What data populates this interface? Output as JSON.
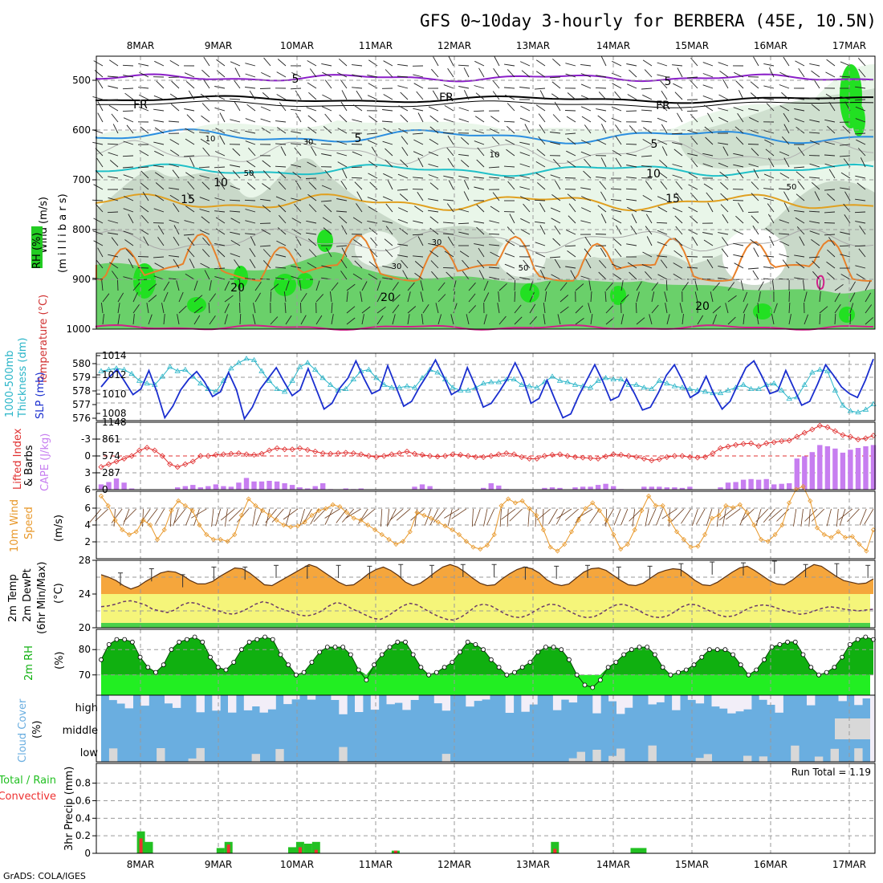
{
  "title": "GFS 0~10day 3-hourly for BERBERA (45E, 10.5N)",
  "credit": "GrADS: COLA/IGES",
  "run_total": "Run Total = 1.19",
  "dates": [
    "8MAR",
    "9MAR",
    "10MAR",
    "11MAR",
    "12MAR",
    "13MAR",
    "14MAR",
    "15MAR",
    "16MAR",
    "17MAR"
  ],
  "panels": {
    "upper": {
      "labels": [
        "Wind (m/s)",
        "Temperature (°C)",
        "RH (%)",
        "(m i l l i b a r s)"
      ],
      "ticks": [
        "500",
        "600",
        "700",
        "800",
        "900",
        "1000"
      ],
      "contour_labels": [
        "5",
        "5",
        "FR",
        "FR",
        "FR",
        "5",
        "5",
        "10",
        "10",
        "15",
        "15",
        "20",
        "20",
        "20",
        "10",
        "30",
        "30",
        "50",
        "50",
        "30",
        "10",
        "50"
      ]
    },
    "slp": {
      "labels": [
        "1000-500mb",
        "Thickness (dm)",
        "SLP (mb)"
      ],
      "left_ticks": [
        "580",
        "579",
        "578",
        "577",
        "576"
      ],
      "right_ticks": [
        "1014",
        "1012",
        "1010",
        "1008"
      ]
    },
    "cape": {
      "labels": [
        "Lifted Index",
        "CAPE (J/kg)"
      ],
      "left_ticks": [
        "-3",
        "0",
        "3",
        "6"
      ],
      "right_ticks": [
        "1148",
        "861",
        "574",
        "287",
        "0"
      ]
    },
    "wind10": {
      "labels": [
        "10m Wind",
        "Speed",
        "& Barbs",
        "(m/s)"
      ],
      "ticks": [
        "6",
        "4",
        "2"
      ]
    },
    "temp2m": {
      "labels": [
        "2m Temp",
        "2m DewPt",
        "(6hr Min/Max)",
        "(°C)"
      ],
      "ticks": [
        "28",
        "24",
        "20"
      ]
    },
    "rh2m": {
      "labels": [
        "2m RH",
        "(%)"
      ],
      "ticks": [
        "80",
        "70"
      ]
    },
    "cloud": {
      "labels": [
        "Cloud Cover",
        "(%)"
      ],
      "levels": [
        "high",
        "middle",
        "low"
      ]
    },
    "precip": {
      "labels": [
        "Total / Rain",
        "Convective",
        "3hr Precip (mm)"
      ],
      "ticks": [
        "0.8",
        "0.6",
        "0.4",
        "0.2",
        "0"
      ]
    }
  },
  "colors": {
    "slp": "#1a2ecf",
    "thickness": "#2ab5c8",
    "lifted_index": "#e03030",
    "cape": "#c77ef0",
    "wind_speed": "#e8982a",
    "temp_fill": "#f5a63c",
    "dew_fill": "#f5f57a",
    "rh_fill": "#10b010",
    "rh_light": "#22ee22",
    "cloud": "#6aaee0",
    "precip_total": "#22c022",
    "precip_conv": "#ee3030"
  },
  "chart_data": {
    "type": "meteogram",
    "title": "GFS 0~10day 3-hourly for BERBERA (45E, 10.5N)",
    "time_step_hours": 3,
    "slp_mb": {
      "ylim": [
        1007,
        1014
      ],
      "values": [
        1010.5,
        1011.5,
        1012.3,
        1011,
        1009.7,
        1010.3,
        1012.2,
        1010,
        1007.3,
        1008.5,
        1010.2,
        1011.3,
        1012.1,
        1011,
        1009.5,
        1010,
        1012,
        1010.2,
        1007.2,
        1008.4,
        1010.3,
        1011.4,
        1012.5,
        1011,
        1009.6,
        1010.2,
        1012.4,
        1010.3,
        1008.2,
        1008.8,
        1010.4,
        1011.4,
        1013.2,
        1011.4,
        1009.8,
        1010.2,
        1012.7,
        1010.6,
        1008.5,
        1009,
        1010.5,
        1011.8,
        1013.3,
        1011.6,
        1009.7,
        1010.2,
        1012.5,
        1010.6,
        1008.4,
        1008.8,
        1010,
        1011.3,
        1013,
        1011.3,
        1008.8,
        1009.3,
        1011.2,
        1009.2,
        1007.3,
        1007.7,
        1009.6,
        1011.2,
        1012.8,
        1011.1,
        1009.1,
        1009.5,
        1011.3,
        1009.8,
        1008.1,
        1008.4,
        1009.9,
        1011.7,
        1012.8,
        1011.2,
        1009.4,
        1009.9,
        1011.6,
        1009.7,
        1008.2,
        1009,
        1010.8,
        1012.5,
        1013.2,
        1011.6,
        1009.8,
        1010.1,
        1012.2,
        1010.4,
        1008.6,
        1009,
        1010.8,
        1012.8,
        1011.7,
        1010.5,
        1009.8,
        1009.4,
        1011.2,
        1013.4
      ]
    },
    "thickness_dm": {
      "ylim": [
        575.9,
        580.8
      ],
      "values": [
        579.5,
        579.6,
        579.7,
        579.6,
        579.3,
        578.8,
        578.6,
        578.5,
        579.1,
        579.8,
        579.5,
        579.6,
        579.1,
        578.6,
        578.2,
        578,
        578.8,
        579.7,
        580.1,
        580.4,
        580.3,
        579.5,
        578.8,
        578.2,
        578,
        578.8,
        579.8,
        580.1,
        579.6,
        579,
        578.5,
        578.1,
        578.2,
        578.9,
        579.5,
        579.6,
        579,
        578.5,
        578.3,
        578.3,
        578.4,
        578.3,
        579,
        579.6,
        579.4,
        578.9,
        578.3,
        578.1,
        578.1,
        578.3,
        578.6,
        578.7,
        578.7,
        578.9,
        578.9,
        578.5,
        578.4,
        578.3,
        578.7,
        579.1,
        578.8,
        578.7,
        578.5,
        578.4,
        578.3,
        578.8,
        579,
        578.9,
        578.9,
        578.5,
        578.5,
        578.3,
        578.2,
        578.8,
        578.6,
        578.4,
        578.3,
        578.2,
        578.1,
        578,
        577.9,
        577.9,
        578.1,
        578.3,
        578.5,
        578.2,
        578.2,
        578.5,
        578.6,
        578.1,
        577.5,
        577.6,
        578.5,
        579.4,
        579.6,
        579.5,
        578.1,
        577,
        576.6,
        576.5,
        576.7,
        577.1
      ]
    },
    "lifted_index": {
      "ylim": [
        6,
        -6
      ],
      "values": [
        2,
        1.5,
        1,
        0.5,
        0,
        -1,
        -1.5,
        -1,
        0,
        1.5,
        2,
        1.5,
        1,
        0,
        0,
        -0.2,
        -0.3,
        -0.4,
        -0.5,
        -0.3,
        -0.2,
        -0.4,
        -1,
        -1.4,
        -1.2,
        -1.2,
        -1.4,
        -1.1,
        -0.8,
        -0.5,
        -0.4,
        -0.5,
        -0.6,
        -0.5,
        -0.3,
        0,
        0.2,
        0,
        -0.3,
        -0.5,
        -0.8,
        -0.4,
        -0.2,
        0,
        0.1,
        0,
        -0.3,
        -0.2,
        0,
        0.2,
        0.2,
        0,
        -0.3,
        -0.5,
        -0.3,
        0.2,
        0.5,
        0.5,
        0,
        -0.2,
        -0.3,
        0,
        0.2,
        0.3,
        0.4,
        0.5,
        0.1,
        -0.3,
        -0.2,
        0,
        0.2,
        0.5,
        0.8,
        0.6,
        0.2,
        0,
        0,
        0.2,
        0.3,
        0.2,
        -0.5,
        -1.4,
        -1.7,
        -2,
        -2.2,
        -2.3,
        -1.8,
        -2.3,
        -2.5,
        -2.7,
        -2.8,
        -3.5,
        -4.2,
        -4.8,
        -5.5,
        -5.2,
        -4.5,
        -3.8,
        -3.5,
        -3,
        -3.2,
        -3.7
      ]
    },
    "cape_jkg": {
      "ylim": [
        0,
        1148
      ],
      "values": [
        90,
        130,
        190,
        120,
        20,
        0,
        0,
        0,
        0,
        0,
        40,
        60,
        80,
        40,
        60,
        90,
        60,
        50,
        120,
        200,
        140,
        140,
        150,
        140,
        110,
        80,
        40,
        20,
        60,
        110,
        10,
        0,
        20,
        10,
        20,
        0,
        0,
        0,
        0,
        0,
        0,
        50,
        90,
        60,
        10,
        0,
        0,
        0,
        0,
        0,
        30,
        110,
        70,
        10,
        0,
        0,
        0,
        0,
        30,
        40,
        30,
        0,
        40,
        50,
        50,
        80,
        100,
        60,
        10,
        0,
        0,
        50,
        50,
        50,
        40,
        40,
        30,
        50,
        0,
        0,
        0,
        40,
        120,
        130,
        170,
        180,
        170,
        180,
        90,
        100,
        110,
        530,
        570,
        640,
        760,
        740,
        700,
        630,
        680,
        710,
        740,
        760
      ]
    },
    "wind_speed_ms": {
      "ylim": [
        0,
        7
      ],
      "values": [
        6.5,
        5.5,
        4,
        3,
        2.5,
        2.8,
        4,
        3.5,
        2,
        3,
        5,
        6,
        5.5,
        5,
        3.5,
        2.5,
        2,
        2,
        1.8,
        2.5,
        4.5,
        6.2,
        5.5,
        5,
        4.5,
        4,
        3.5,
        3.3,
        3.4,
        3.8,
        4.5,
        5,
        5.2,
        5.6,
        5.4,
        4.8,
        4.2,
        4,
        3.5,
        3,
        2.5,
        2,
        1.5,
        1.8,
        2.8,
        4.8,
        4.5,
        4.2,
        3.8,
        3.4,
        3,
        2.5,
        1.8,
        1.2,
        1,
        1.4,
        2.5,
        5.5,
        6.2,
        5.8,
        6,
        5.2,
        4.5,
        3,
        1.2,
        0.8,
        1.5,
        2.8,
        4,
        5.2,
        5.8,
        5,
        4,
        2.5,
        1,
        1.5,
        3,
        5,
        6.5,
        5.5,
        5.5,
        4,
        2.8,
        2,
        1.2,
        1.3,
        2.5,
        4.2,
        4.5,
        5.5,
        5.3,
        5.6,
        4.8,
        3.5,
        2,
        1.8,
        2.5,
        3.5,
        5.8,
        7.2,
        7.5,
        6,
        3.2,
        2.5,
        2.2,
        2.8,
        2.2,
        2.3,
        1.5,
        0.8,
        3
      ]
    },
    "temp2m_c": {
      "ylim": [
        20,
        28
      ],
      "values": [
        26.3,
        26,
        25.6,
        25,
        24.6,
        24.9,
        25.5,
        26,
        26.5,
        26.7,
        26.6,
        26.2,
        25.6,
        25.2,
        25.2,
        25.5,
        26.1,
        26.6,
        27.1,
        27,
        26.5,
        25.8,
        25.1,
        25,
        25.5,
        26,
        26.5,
        27,
        27.5,
        27.2,
        26.6,
        26,
        25.4,
        25,
        25.1,
        25.7,
        26.4,
        26.9,
        27.2,
        26.8,
        26.2,
        25.4,
        25,
        25.3,
        25.9,
        26.6,
        27.2,
        27.5,
        27.2,
        26.6,
        25.9,
        25.3,
        25,
        25.1,
        25.8,
        26.4,
        26.9,
        27.2,
        27,
        26.5,
        25.7,
        25.2,
        25,
        25.2,
        25.9,
        26.6,
        27,
        27.1,
        26.8,
        26.2,
        25.6,
        25.1,
        25,
        25.3,
        25.9,
        26.5,
        26.8,
        27,
        26.9,
        26.3,
        25.6,
        25.1,
        25,
        25.4,
        26,
        26.6,
        27.1,
        27.3,
        26.8,
        26.2,
        25.6,
        25.2,
        25.1,
        25.6,
        26.3,
        27,
        27.5,
        27.3,
        26.7,
        26.1,
        25.6,
        25.4,
        25.2,
        25.3,
        25.8
      ]
    },
    "temp_maxmin_bars": {
      "values": [
        26.5,
        27,
        26.3,
        27.2,
        27.2,
        27.4,
        27.3,
        27.4,
        27.3,
        27.5,
        27.4,
        27.5,
        27.5,
        27.2,
        27.3,
        27.4,
        27.2,
        27.3,
        27.6,
        27.8,
        27.7,
        27.9,
        27.5,
        27.6,
        27.4
      ]
    },
    "dewpt2m_c": {
      "ylim": [
        20,
        28
      ],
      "values": [
        22.5,
        22.6,
        22.8,
        23.1,
        23.2,
        23,
        22.7,
        22.2,
        22,
        21.8,
        22.1,
        22.7,
        23,
        22.9,
        22.5,
        22.2,
        22,
        21.7,
        21.6,
        21.9,
        22.3,
        22.8,
        23.1,
        22.9,
        22.4,
        22.1,
        21.8,
        21.5,
        21.4,
        21.6,
        22,
        22.6,
        23,
        22.8,
        22.3,
        21.9,
        21.5,
        21.1,
        21,
        21.4,
        22,
        22.6,
        22.9,
        22.7,
        22.2,
        21.7,
        21.3,
        21,
        20.9,
        21.3,
        21.9,
        22.6,
        22.8,
        22.6,
        22.1,
        21.6,
        21.3,
        21.2,
        21.5,
        22,
        22.5,
        22.8,
        22.7,
        22.3,
        21.8,
        21.4,
        21.2,
        21.3,
        21.7,
        22.3,
        22.7,
        22.8,
        22.5,
        22.1,
        21.6,
        21.3,
        21.2,
        21.4,
        21.9,
        22.5,
        22.8,
        22.7,
        22.3,
        21.9,
        21.5,
        21.3,
        21.4,
        21.8,
        22.3,
        22.6,
        22.7,
        22.6,
        22.3,
        22,
        21.8,
        21.6,
        21.7,
        22,
        22.3,
        22.5,
        22.4,
        22.2,
        22.1,
        22,
        22.1,
        22.2
      ]
    },
    "rh2m_pct": {
      "ylim": [
        62,
        88
      ],
      "values": [
        76,
        82,
        84,
        84,
        83,
        77,
        73,
        71,
        74,
        80,
        83,
        84,
        85,
        83,
        77,
        73,
        72,
        75,
        80,
        83,
        84,
        85,
        84,
        78,
        74,
        70,
        71,
        75,
        79,
        81,
        81,
        81,
        78,
        72,
        68,
        74,
        78,
        81,
        83,
        83,
        78,
        73,
        70,
        71,
        73,
        75,
        79,
        83,
        82,
        80,
        76,
        73,
        70,
        71,
        73,
        75,
        79,
        81,
        81,
        80,
        76,
        70,
        66,
        65,
        68,
        73,
        75,
        78,
        80,
        81,
        81,
        78,
        73,
        70,
        71,
        72,
        74,
        77,
        80,
        80,
        80,
        78,
        74,
        70,
        72,
        76,
        81,
        82,
        83,
        83,
        78,
        73,
        70,
        71,
        73,
        77,
        82,
        84,
        85,
        84
      ]
    },
    "precip_mm": {
      "ylim": [
        0,
        1
      ],
      "total": [
        0,
        0,
        0,
        0,
        0,
        0.25,
        0.13,
        0,
        0,
        0,
        0,
        0,
        0,
        0,
        0,
        0.06,
        0.13,
        0,
        0,
        0,
        0,
        0,
        0,
        0,
        0.07,
        0.13,
        0.11,
        0.13,
        0,
        0,
        0,
        0,
        0,
        0,
        0,
        0,
        0,
        0.03,
        0,
        0,
        0,
        0,
        0,
        0,
        0,
        0,
        0,
        0,
        0,
        0,
        0,
        0,
        0,
        0,
        0,
        0,
        0,
        0.13,
        0,
        0,
        0,
        0,
        0,
        0,
        0,
        0,
        0,
        0.06,
        0.06,
        0,
        0,
        0,
        0,
        0,
        0,
        0,
        0,
        0,
        0,
        0,
        0,
        0,
        0,
        0,
        0,
        0,
        0,
        0,
        0,
        0,
        0,
        0,
        0,
        0,
        0,
        0,
        0,
        0
      ],
      "convective": [
        0,
        0,
        0,
        0,
        0,
        0.17,
        0,
        0,
        0,
        0,
        0,
        0,
        0,
        0,
        0,
        0,
        0.1,
        0,
        0,
        0,
        0,
        0,
        0,
        0,
        0,
        0.07,
        0,
        0.04,
        0,
        0,
        0,
        0,
        0,
        0,
        0,
        0,
        0,
        0.03,
        0,
        0,
        0,
        0,
        0,
        0,
        0,
        0,
        0,
        0,
        0,
        0,
        0,
        0,
        0,
        0,
        0,
        0,
        0,
        0.05,
        0,
        0,
        0,
        0,
        0,
        0,
        0,
        0,
        0,
        0,
        0,
        0,
        0,
        0,
        0,
        0,
        0,
        0,
        0,
        0,
        0,
        0,
        0,
        0,
        0,
        0,
        0,
        0,
        0,
        0,
        0,
        0,
        0,
        0,
        0,
        0,
        0,
        0,
        0,
        0
      ]
    }
  }
}
